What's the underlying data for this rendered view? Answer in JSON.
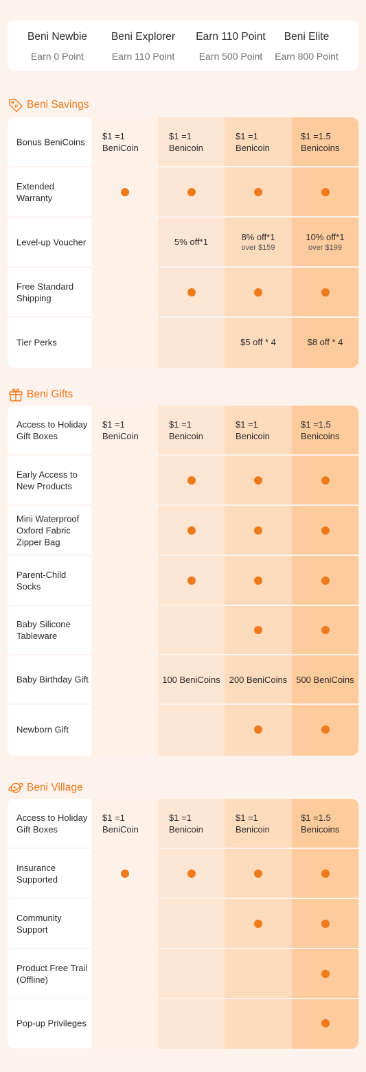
{
  "tiers": [
    {
      "name": "Beni Newbie",
      "points": "Earn 0 Point"
    },
    {
      "name": "Beni Explorer",
      "points": "Earn 110 Point"
    },
    {
      "name": "Earn 110 Point",
      "points": "Earn 500 Point"
    },
    {
      "name": "Beni Elite",
      "points": "Earn 800 Point"
    }
  ],
  "colors": {
    "accent": "#ef7a1c",
    "col1": "#fef1e7",
    "col2": "#fde6d3",
    "col3": "#fddbbd",
    "col4": "#fdcb9c"
  },
  "sections": [
    {
      "title": "Beni Savings",
      "icon": "price-tag-icon",
      "rows": [
        {
          "label": "Bonus BeniCoins",
          "cells": [
            {
              "text": "$1 =1 BeniCoin"
            },
            {
              "text": "$1 =1 Benicoin"
            },
            {
              "text": "$1 =1 Benicoin"
            },
            {
              "text": "$1 =1.5 Benicoins"
            }
          ]
        },
        {
          "label": "Extended Warranty",
          "cells": [
            {
              "dot": true
            },
            {
              "dot": true
            },
            {
              "dot": true
            },
            {
              "dot": true
            }
          ]
        },
        {
          "label": "Level-up Voucher",
          "cells": [
            {},
            {
              "text": "5% off*1"
            },
            {
              "text": "8% off*1",
              "sub": "over $159"
            },
            {
              "text": "10% off*1",
              "sub": "over $199"
            }
          ]
        },
        {
          "label": "Free Standard Shipping",
          "cells": [
            {},
            {
              "dot": true
            },
            {
              "dot": true
            },
            {
              "dot": true
            }
          ]
        },
        {
          "label": "Tier Perks",
          "cells": [
            {},
            {},
            {
              "text": "$5 off * 4"
            },
            {
              "text": "$8 off * 4"
            }
          ]
        }
      ]
    },
    {
      "title": "Beni Gifts",
      "icon": "gift-icon",
      "rows": [
        {
          "label": "Access to Holiday Gift Boxes",
          "cells": [
            {
              "text": "$1 =1 BeniCoin"
            },
            {
              "text": "$1 =1 Benicoin"
            },
            {
              "text": "$1 =1 Benicoin"
            },
            {
              "text": "$1 =1.5 Benicoins"
            }
          ]
        },
        {
          "label": "Early Access to New Products",
          "cells": [
            {},
            {
              "dot": true
            },
            {
              "dot": true
            },
            {
              "dot": true
            }
          ]
        },
        {
          "label": "Mini Waterproof Oxford Fabric Zipper Bag",
          "cells": [
            {},
            {
              "dot": true
            },
            {
              "dot": true
            },
            {
              "dot": true
            }
          ]
        },
        {
          "label": "Parent-Child Socks",
          "cells": [
            {},
            {
              "dot": true
            },
            {
              "dot": true
            },
            {
              "dot": true
            }
          ]
        },
        {
          "label": "Baby Silicone Tableware",
          "cells": [
            {},
            {},
            {
              "dot": true
            },
            {
              "dot": true
            }
          ]
        },
        {
          "label": "Baby Birthday Gift",
          "cells": [
            {},
            {
              "text": "100 BeniCoins"
            },
            {
              "text": "200 BeniCoins"
            },
            {
              "text": "500 BeniCoins"
            }
          ]
        },
        {
          "label": "Newborn Gift",
          "cells": [
            {},
            {},
            {
              "dot": true
            },
            {
              "dot": true
            }
          ]
        }
      ]
    },
    {
      "title": "Beni Village",
      "icon": "planet-icon",
      "rows": [
        {
          "label": "Access to Holiday Gift Boxes",
          "cells": [
            {
              "text": "$1 =1 BeniCoin"
            },
            {
              "text": "$1 =1 Benicoin"
            },
            {
              "text": "$1 =1 Benicoin"
            },
            {
              "text": "$1 =1.5 Benicoins"
            }
          ]
        },
        {
          "label": "Insurance Supported",
          "cells": [
            {
              "dot": true
            },
            {
              "dot": true
            },
            {
              "dot": true
            },
            {
              "dot": true
            }
          ]
        },
        {
          "label": "Community Support",
          "cells": [
            {},
            {},
            {
              "dot": true
            },
            {
              "dot": true
            }
          ]
        },
        {
          "label": "Product Free Trail (Offline)",
          "cells": [
            {},
            {},
            {},
            {
              "dot": true
            }
          ]
        },
        {
          "label": "Pop-up Privileges",
          "cells": [
            {},
            {},
            {},
            {
              "dot": true
            }
          ]
        }
      ]
    }
  ]
}
